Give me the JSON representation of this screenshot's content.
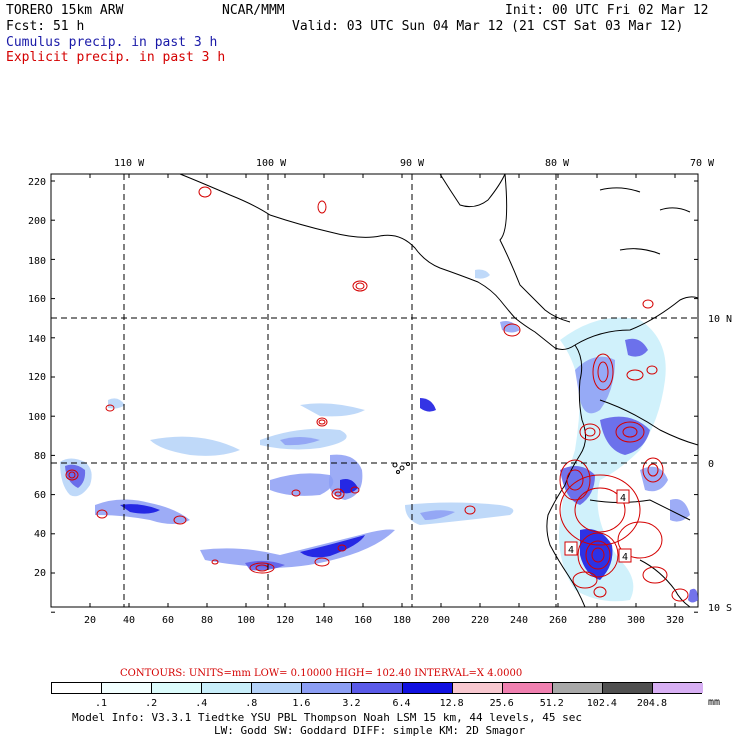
{
  "header": {
    "model": "TORERO  15km ARW",
    "org": "NCAR/MMM",
    "init": "Init: 00 UTC Fri 02 Mar 12",
    "fcst": "Fcst:    51 h",
    "valid": "Valid: 03 UTC Sun 04 Mar 12 (21 CST Sat 03 Mar 12)",
    "cumulus": "Cumulus precip. in past 3 h",
    "explicit": "Explicit precip. in past 3 h"
  },
  "colors": {
    "cumulus_text": "#1a1aa8",
    "explicit_text": "#d40000",
    "contour": "#d40000",
    "coast": "#000000"
  },
  "map": {
    "lon_labels": [
      "110 W",
      "100 W",
      "90 W",
      "80 W",
      "70 W"
    ],
    "lat_labels": [
      "10 N",
      "0",
      "10 S"
    ],
    "y_ticks": [
      "220",
      "200",
      "180",
      "160",
      "140",
      "120",
      "100",
      "80",
      "60",
      "40",
      "20"
    ],
    "x_ticks": [
      "20",
      "40",
      "60",
      "80",
      "100",
      "120",
      "140",
      "160",
      "180",
      "200",
      "220",
      "240",
      "260",
      "280",
      "300",
      "320"
    ],
    "contour_labels": [
      "4",
      "4",
      "4"
    ]
  },
  "footer": {
    "contours": "CONTOURS:  UNITS=mm  LOW= 0.10000      HIGH=  102.40      INTERVAL=X  4.0000",
    "colorbar_labels": [
      ".1",
      ".2",
      ".4",
      ".8",
      "1.6",
      "3.2",
      "6.4",
      "12.8",
      "25.6",
      "51.2",
      "102.4",
      "204.8"
    ],
    "colorbar_unit": "mm",
    "colorbar_colors": [
      "#ffffff",
      "#f2ffff",
      "#dcfcfc",
      "#c8eefa",
      "#b4d2f8",
      "#8c9ef4",
      "#5a5ae8",
      "#1010e0",
      "#f8c8d0",
      "#f080b0",
      "#a8a8a8",
      "#505050",
      "#d8b0f4"
    ],
    "model_info": "Model Info: V3.3.1    Tiedtke YSU PBL  Thompson    Noah LSM  15 km,    44 levels,    45 sec",
    "model_info2": "LW: Godd SW: Goddard DIFF: simple KM: 2D Smagor"
  }
}
